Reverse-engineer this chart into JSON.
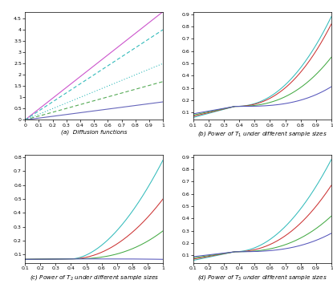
{
  "panel_a": {
    "title": "(a)  Diffusion functions",
    "xlim": [
      0,
      1
    ],
    "ylim": [
      0,
      4.8
    ],
    "yticks": [
      0,
      0.5,
      1.0,
      1.5,
      2.0,
      2.5,
      3.0,
      3.5,
      4.0,
      4.5
    ],
    "xticks": [
      0,
      0.1,
      0.2,
      0.3,
      0.4,
      0.5,
      0.6,
      0.7,
      0.8,
      0.9,
      1.0
    ],
    "lines": [
      {
        "slope": 4.8,
        "color": "#cc55cc",
        "linestyle": "solid",
        "lw": 0.8
      },
      {
        "slope": 4.0,
        "color": "#33bbbb",
        "linestyle": "dashed",
        "lw": 0.8
      },
      {
        "slope": 2.5,
        "color": "#33bbbb",
        "linestyle": "dotted",
        "lw": 0.8
      },
      {
        "slope": 1.7,
        "color": "#55aa55",
        "linestyle": "dashed",
        "lw": 0.8
      },
      {
        "slope": 0.8,
        "color": "#6666bb",
        "linestyle": "solid",
        "lw": 0.8
      }
    ]
  },
  "panel_bcd": {
    "xlim": [
      0.1,
      1.0
    ],
    "panels": [
      {
        "title": "(b) Power of $T_1$ under different sample sizes",
        "ylim": [
          0.04,
          0.92
        ],
        "yticks": [
          0.1,
          0.2,
          0.3,
          0.4,
          0.5,
          0.6,
          0.7,
          0.8,
          0.9
        ],
        "curves": [
          {
            "color": "#33bbbb",
            "x_start": 0.1,
            "y_start": 0.06,
            "x_cross": 0.37,
            "y_cross": 0.15,
            "y_end": 0.88,
            "power": 2.2
          },
          {
            "color": "#cc3333",
            "x_start": 0.1,
            "y_start": 0.07,
            "x_cross": 0.37,
            "y_cross": 0.15,
            "y_end": 0.82,
            "power": 2.3
          },
          {
            "color": "#44aa44",
            "x_start": 0.1,
            "y_start": 0.08,
            "x_cross": 0.37,
            "y_cross": 0.15,
            "y_end": 0.55,
            "power": 2.5
          },
          {
            "color": "#5555bb",
            "x_start": 0.1,
            "y_start": 0.09,
            "x_cross": 0.37,
            "y_cross": 0.15,
            "y_end": 0.31,
            "power": 3.0
          }
        ]
      },
      {
        "title": "(c) Power of $T_2$ under different sample sizes",
        "ylim": [
          0.04,
          0.82
        ],
        "yticks": [
          0.1,
          0.2,
          0.3,
          0.4,
          0.5,
          0.6,
          0.7,
          0.8
        ],
        "curves": [
          {
            "color": "#33bbbb",
            "x_start": 0.1,
            "y_start": 0.065,
            "x_cross": 0.4,
            "y_cross": 0.068,
            "y_end": 0.78,
            "power": 1.8
          },
          {
            "color": "#cc3333",
            "x_start": 0.1,
            "y_start": 0.065,
            "x_cross": 0.4,
            "y_cross": 0.068,
            "y_end": 0.5,
            "power": 2.0
          },
          {
            "color": "#44aa44",
            "x_start": 0.1,
            "y_start": 0.065,
            "x_cross": 0.4,
            "y_cross": 0.068,
            "y_end": 0.27,
            "power": 2.5
          },
          {
            "color": "#5555bb",
            "x_start": 0.1,
            "y_start": 0.065,
            "x_cross": 0.4,
            "y_cross": 0.068,
            "y_end": 0.065,
            "power": 4.0
          }
        ]
      },
      {
        "title": "(d) Power of $T_3$ under different sample sizes",
        "ylim": [
          0.04,
          0.92
        ],
        "yticks": [
          0.1,
          0.2,
          0.3,
          0.4,
          0.5,
          0.6,
          0.7,
          0.8,
          0.9
        ],
        "curves": [
          {
            "color": "#33bbbb",
            "x_start": 0.1,
            "y_start": 0.06,
            "x_cross": 0.37,
            "y_cross": 0.13,
            "y_end": 0.88,
            "power": 2.0
          },
          {
            "color": "#cc3333",
            "x_start": 0.1,
            "y_start": 0.07,
            "x_cross": 0.37,
            "y_cross": 0.13,
            "y_end": 0.67,
            "power": 2.2
          },
          {
            "color": "#44aa44",
            "x_start": 0.1,
            "y_start": 0.08,
            "x_cross": 0.37,
            "y_cross": 0.13,
            "y_end": 0.42,
            "power": 2.5
          },
          {
            "color": "#5555bb",
            "x_start": 0.1,
            "y_start": 0.09,
            "x_cross": 0.37,
            "y_cross": 0.13,
            "y_end": 0.28,
            "power": 2.8
          }
        ]
      }
    ],
    "xticks": [
      0.1,
      0.2,
      0.3,
      0.4,
      0.5,
      0.6,
      0.7,
      0.8,
      0.9,
      1.0
    ]
  },
  "tick_fontsize": 4.5,
  "label_fontsize": 5.2,
  "lw": 0.75,
  "bg_color": "#f0f0f0"
}
